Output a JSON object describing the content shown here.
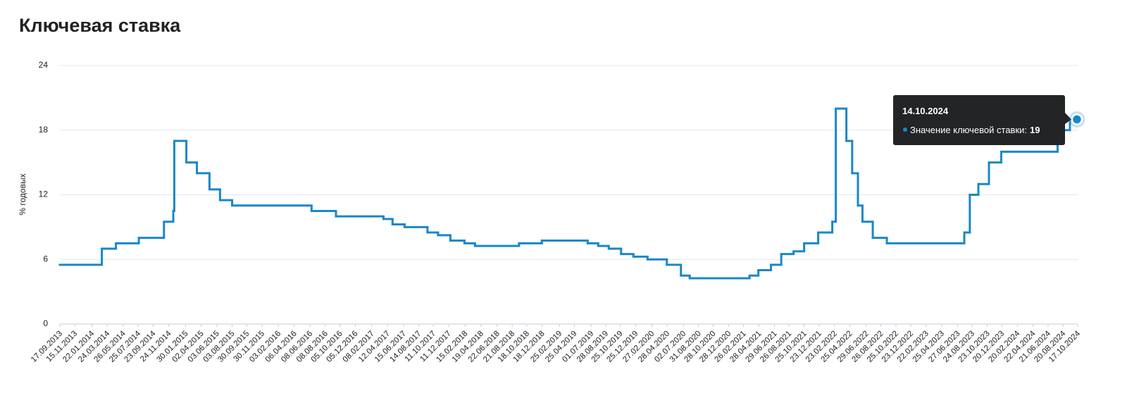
{
  "chart_data": {
    "type": "step",
    "title": "Ключевая ставка",
    "y_label": "% годовых",
    "ylim": [
      0,
      24
    ],
    "yticks": [
      0,
      6,
      12,
      18,
      24
    ],
    "xlim": [
      "17.09.2013",
      "17.10.2024"
    ],
    "xticks": [
      "17.09.2013",
      "15.11.2013",
      "22.01.2014",
      "24.03.2014",
      "26.05.2014",
      "25.07.2014",
      "23.09.2014",
      "24.11.2014",
      "30.01.2015",
      "02.04.2015",
      "03.06.2015",
      "03.08.2015",
      "30.09.2015",
      "30.11.2015",
      "03.02.2016",
      "06.04.2016",
      "08.06.2016",
      "08.08.2016",
      "05.10.2016",
      "05.12.2016",
      "08.02.2017",
      "12.04.2017",
      "15.06.2017",
      "14.08.2017",
      "11.10.2017",
      "11.12.2017",
      "15.02.2018",
      "19.04.2018",
      "22.06.2018",
      "21.08.2018",
      "18.10.2018",
      "18.12.2018",
      "25.02.2019",
      "25.04.2019",
      "01.07.2019",
      "28.08.2019",
      "25.10.2019",
      "25.12.2019",
      "27.02.2020",
      "28.04.2020",
      "02.07.2020",
      "31.08.2020",
      "28.10.2020",
      "28.12.2020",
      "26.02.2021",
      "28.04.2021",
      "29.06.2021",
      "26.08.2021",
      "25.10.2021",
      "23.12.2021",
      "23.02.2022",
      "25.04.2022",
      "29.06.2022",
      "26.08.2022",
      "25.10.2022",
      "23.12.2022",
      "22.02.2023",
      "25.04.2023",
      "27.06.2023",
      "24.08.2023",
      "23.10.2023",
      "20.12.2023",
      "20.02.2024",
      "22.04.2024",
      "21.06.2024",
      "20.08.2024",
      "17.10.2024"
    ],
    "grid": true,
    "series": [
      {
        "name": "Значение ключевой ставки",
        "color": "#1a87c9",
        "x": [
          "17.09.2013",
          "03.03.2014",
          "28.04.2014",
          "28.07.2014",
          "05.11.2014",
          "12.12.2014",
          "16.12.2014",
          "02.02.2015",
          "16.03.2015",
          "05.05.2015",
          "16.06.2015",
          "03.08.2015",
          "14.06.2016",
          "19.09.2016",
          "27.03.2017",
          "02.05.2017",
          "19.06.2017",
          "18.09.2017",
          "30.10.2017",
          "18.12.2017",
          "12.02.2018",
          "26.03.2018",
          "17.09.2018",
          "17.12.2018",
          "17.06.2019",
          "29.07.2019",
          "09.09.2019",
          "28.10.2019",
          "16.12.2019",
          "10.02.2020",
          "27.04.2020",
          "22.06.2020",
          "27.07.2020",
          "22.03.2021",
          "26.04.2021",
          "15.06.2021",
          "26.07.2021",
          "13.09.2021",
          "25.10.2021",
          "20.12.2021",
          "14.02.2022",
          "28.02.2022",
          "11.04.2022",
          "04.05.2022",
          "27.05.2022",
          "14.06.2022",
          "25.07.2022",
          "19.09.2022",
          "24.07.2023",
          "15.08.2023",
          "18.09.2023",
          "30.10.2023",
          "18.12.2023",
          "29.07.2024",
          "16.09.2024",
          "17.10.2024"
        ],
        "values": [
          5.5,
          7,
          7.5,
          8,
          9.5,
          10.5,
          17,
          15,
          14,
          12.5,
          11.5,
          11,
          10.5,
          10,
          9.75,
          9.25,
          9,
          8.5,
          8.25,
          7.75,
          7.5,
          7.25,
          7.5,
          7.75,
          7.5,
          7.25,
          7,
          6.5,
          6.25,
          6,
          5.5,
          4.5,
          4.25,
          4.5,
          5,
          5.5,
          6.5,
          6.75,
          7.5,
          8.5,
          9.5,
          20,
          17,
          14,
          11,
          9.5,
          8,
          7.5,
          8.5,
          12,
          13,
          15,
          16,
          18,
          19,
          19
        ]
      }
    ],
    "tooltip": {
      "date": "14.10.2024",
      "label": "Значение ключевой ставки:",
      "value": 19
    }
  }
}
